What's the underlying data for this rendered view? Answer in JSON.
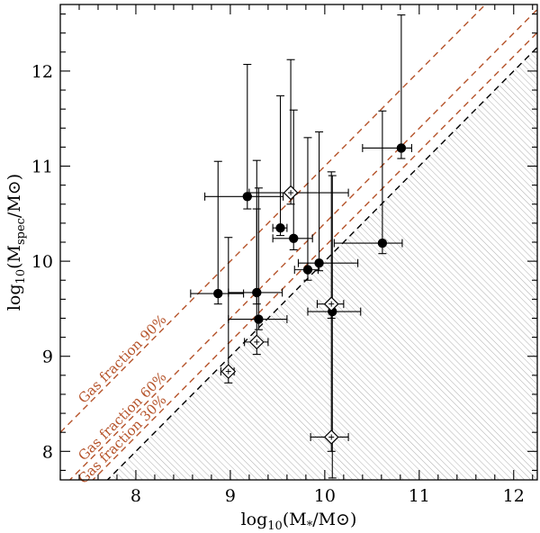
{
  "chart_data": {
    "type": "scatter",
    "title": "",
    "xlabel": "log10(M*/M⊙)",
    "ylabel": "log10(Mspec/M⊙)",
    "xlim": [
      7.2,
      12.25
    ],
    "ylim": [
      7.7,
      12.7
    ],
    "x_ticks": [
      8,
      9,
      10,
      11,
      12
    ],
    "y_ticks": [
      8,
      9,
      10,
      11,
      12
    ],
    "x_tick_labels": [
      "8",
      "9",
      "10",
      "11",
      "12"
    ],
    "y_tick_labels": [
      "8",
      "9",
      "10",
      "11",
      "12"
    ],
    "xlabel_parts": {
      "base": "log",
      "sub1": "10",
      "mid": "(M",
      "sub2": "*",
      "end": "/M⊙)"
    },
    "ylabel_parts": {
      "base": "log",
      "sub1": "10",
      "mid": "(M",
      "sub2": "spec",
      "end": "/M⊙)"
    },
    "shaded_region": "below 1:1 line (Mspec < M*)",
    "reference_lines": [
      {
        "name": "one-to-one",
        "offset_dex": 0,
        "color": "#000000",
        "label": ""
      },
      {
        "name": "gas-30",
        "offset_dex": 0.155,
        "color": "#b5532a",
        "label": "Gas fraction  30%"
      },
      {
        "name": "gas-60",
        "offset_dex": 0.398,
        "color": "#b5532a",
        "label": "Gas fraction  60%"
      },
      {
        "name": "gas-90",
        "offset_dex": 1.0,
        "color": "#b5532a",
        "label": "Gas fraction  90%"
      }
    ],
    "series": [
      {
        "name": "filled circles",
        "marker": "circle",
        "points": [
          {
            "x": 8.87,
            "y": 9.66,
            "xlo": 8.58,
            "xhi": 9.14,
            "ylo": 9.55,
            "yhi": 11.05
          },
          {
            "x": 9.18,
            "y": 10.68,
            "xlo": 8.73,
            "xhi": 9.56,
            "ylo": 10.55,
            "yhi": 12.07
          },
          {
            "x": 9.28,
            "y": 9.67,
            "xlo": 8.98,
            "xhi": 9.55,
            "ylo": 9.55,
            "yhi": 11.06
          },
          {
            "x": 9.3,
            "y": 9.39,
            "xlo": 8.98,
            "xhi": 9.6,
            "ylo": 9.28,
            "yhi": 10.77
          },
          {
            "x": 9.53,
            "y": 10.35,
            "xlo": 9.45,
            "xhi": 9.6,
            "ylo": 10.27,
            "yhi": 11.74
          },
          {
            "x": 9.67,
            "y": 10.24,
            "xlo": 9.45,
            "xhi": 9.87,
            "ylo": 10.12,
            "yhi": 11.59
          },
          {
            "x": 9.82,
            "y": 9.91,
            "xlo": 9.68,
            "xhi": 9.93,
            "ylo": 9.8,
            "yhi": 11.3
          },
          {
            "x": 9.94,
            "y": 9.98,
            "xlo": 9.72,
            "xhi": 10.35,
            "ylo": 9.9,
            "yhi": 11.36
          },
          {
            "x": 10.08,
            "y": 9.47,
            "xlo": 9.82,
            "xhi": 10.38,
            "ylo": 7.72,
            "yhi": 10.9
          },
          {
            "x": 10.61,
            "y": 10.19,
            "xlo": 10.1,
            "xhi": 10.82,
            "ylo": 10.08,
            "yhi": 11.58
          },
          {
            "x": 10.81,
            "y": 11.19,
            "xlo": 10.4,
            "xhi": 10.92,
            "ylo": 11.08,
            "yhi": 12.59
          }
        ]
      },
      {
        "name": "open diamonds",
        "marker": "diamond",
        "points": [
          {
            "x": 8.98,
            "y": 8.84,
            "xlo": 8.9,
            "xhi": 9.04,
            "ylo": 8.72,
            "yhi": 10.25
          },
          {
            "x": 9.28,
            "y": 9.15,
            "xlo": 9.15,
            "xhi": 9.4,
            "ylo": 9.02,
            "yhi": 10.55
          },
          {
            "x": 9.64,
            "y": 10.72,
            "xlo": 9.2,
            "xhi": 10.25,
            "ylo": 10.6,
            "yhi": 12.12
          },
          {
            "x": 10.07,
            "y": 9.55,
            "xlo": 9.92,
            "xhi": 10.2,
            "ylo": 9.4,
            "yhi": 10.94
          },
          {
            "x": 10.07,
            "y": 8.15,
            "xlo": 9.85,
            "xhi": 10.25,
            "ylo": 8.0,
            "yhi": 9.55
          }
        ]
      }
    ]
  }
}
